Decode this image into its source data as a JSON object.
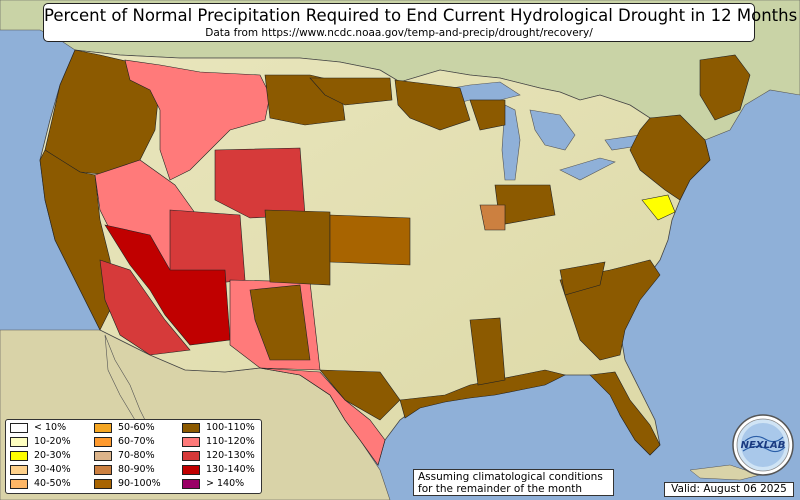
{
  "title": "Percent of Normal Precipitation Required to End Current Hydrological Drought in 12 Months",
  "subtitle": "Data from https://www.ncdc.noaa.gov/temp-and-precip/drought/recovery/",
  "note_line1": "Assuming climatological conditions",
  "note_line2": "for the remainder of the month",
  "valid": "Valid: August 06 2025",
  "logo_text": "NEXLAB",
  "legend": [
    {
      "label": "< 10%",
      "color": "#ffffff"
    },
    {
      "label": "10-20%",
      "color": "#ffffc0"
    },
    {
      "label": "20-30%",
      "color": "#ffff00"
    },
    {
      "label": "30-40%",
      "color": "#ffd18a"
    },
    {
      "label": "40-50%",
      "color": "#ffb766"
    },
    {
      "label": "50-60%",
      "color": "#f5a623"
    },
    {
      "label": "60-70%",
      "color": "#ff9a2e"
    },
    {
      "label": "70-80%",
      "color": "#dcb48a"
    },
    {
      "label": "80-90%",
      "color": "#cc8040"
    },
    {
      "label": "90-100%",
      "color": "#a86400"
    },
    {
      "label": "100-110%",
      "color": "#8c5a00"
    },
    {
      "label": "110-120%",
      "color": "#ff7a7a"
    },
    {
      "label": "120-130%",
      "color": "#d63a3a"
    },
    {
      "label": "130-140%",
      "color": "#c00000"
    },
    {
      "label": "> 140%",
      "color": "#990066"
    }
  ],
  "colors": {
    "ocean": "#8fb0d8",
    "land": "#e6e2b8",
    "border": "#222222"
  }
}
